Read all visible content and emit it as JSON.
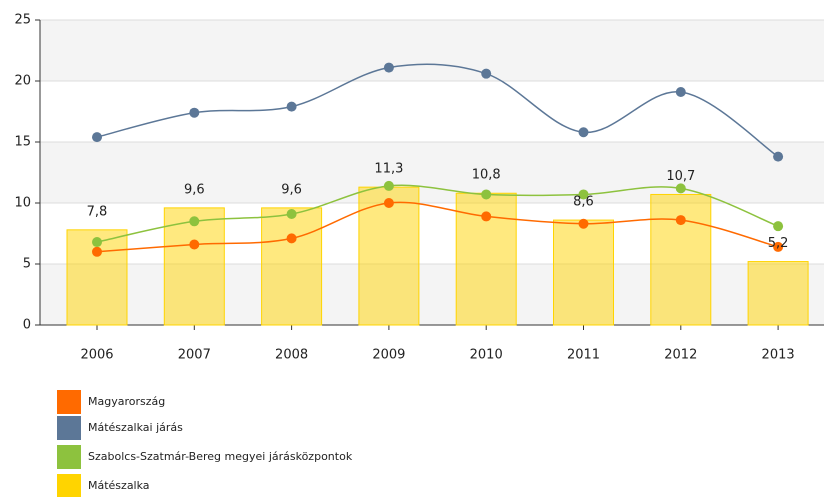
{
  "chart_data": {
    "type": "bar-line",
    "categories": [
      "2006",
      "2007",
      "2008",
      "2009",
      "2010",
      "2011",
      "2012",
      "2013"
    ],
    "ylim": [
      0,
      25
    ],
    "yticks": [
      0,
      5,
      10,
      15,
      20,
      25
    ],
    "grid": true,
    "legend": "bottom-left",
    "series": [
      {
        "name": "Magyarország",
        "color": "#ff6a00",
        "kind": "line",
        "values": [
          6.0,
          6.6,
          7.1,
          10.0,
          8.9,
          8.3,
          8.6,
          6.4
        ]
      },
      {
        "name": "Mátészalkai járás",
        "color": "#5c7797",
        "kind": "line",
        "values": [
          15.4,
          17.4,
          17.9,
          21.1,
          20.6,
          15.8,
          19.1,
          13.8
        ]
      },
      {
        "name": "Szabolcs-Szatmár-Bereg megyei járásközpontok",
        "color": "#8dc23e",
        "kind": "line",
        "values": [
          6.8,
          8.5,
          9.1,
          11.4,
          10.7,
          10.7,
          11.2,
          8.1
        ]
      },
      {
        "name": "Mátészalka",
        "color": "#ffd400",
        "kind": "bar",
        "values": [
          7.8,
          9.6,
          9.6,
          11.3,
          10.8,
          8.6,
          10.7,
          5.2
        ],
        "value_labels": [
          "7,8",
          "9,6",
          "9,6",
          "11,3",
          "10,8",
          "8,6",
          "10,7",
          "5,2"
        ]
      }
    ]
  }
}
